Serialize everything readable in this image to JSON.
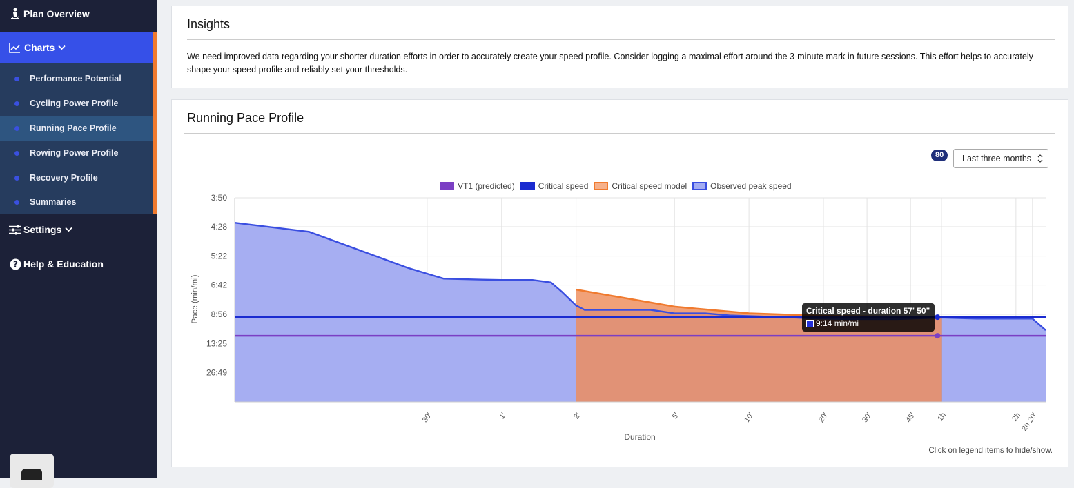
{
  "sidebar": {
    "plan_overview": "Plan Overview",
    "charts": "Charts",
    "charts_items": [
      "Performance Potential",
      "Cycling Power Profile",
      "Running Pace Profile",
      "Rowing Power Profile",
      "Recovery Profile",
      "Summaries"
    ],
    "active_item": "Running Pace Profile",
    "settings": "Settings",
    "help": "Help & Education"
  },
  "insights": {
    "title": "Insights",
    "text": "We need improved data regarding your shorter duration efforts in order to accurately create your speed profile. Consider logging a maximal effort around the 3-minute mark in future sessions. This effort helps to accurately shape your speed profile and reliably set your thresholds."
  },
  "profile": {
    "title": "Running Pace Profile",
    "count_badge": "80",
    "range_selected": "Last three months",
    "hint": "Click on legend items to hide/show."
  },
  "tooltip": {
    "title": "Critical speed - duration 57' 50\"",
    "value": "9:14 min/mi"
  },
  "colors": {
    "sidebar_bg": "#1c2138",
    "accent": "#3650e8",
    "orange": "#f07a2e"
  },
  "chart_data": {
    "type": "area",
    "xlabel": "Duration",
    "ylabel": "Pace (min/mi)",
    "x_scale": "log",
    "x_ticks": [
      "30'",
      "1'",
      "2'",
      "5'",
      "10'",
      "20'",
      "30'",
      "45'",
      "1h",
      "2h",
      "2h 20'"
    ],
    "x_tick_seconds": [
      30,
      60,
      120,
      300,
      600,
      1200,
      1800,
      2700,
      3600,
      7200,
      8400
    ],
    "y_ticks": [
      "3:50",
      "4:28",
      "5:22",
      "6:42",
      "8:56",
      "13:25",
      "26:49"
    ],
    "y_scale": "reciprocal (speed)",
    "legend": [
      {
        "name": "VT1 (predicted)",
        "color": "#7b3fc4"
      },
      {
        "name": "Critical speed",
        "color": "#1a2bd0"
      },
      {
        "name": "Critical speed model",
        "color": "#f07a2e"
      },
      {
        "name": "Observed peak speed",
        "color": "#3a4ee0"
      }
    ],
    "series": [
      {
        "name": "Observed peak speed",
        "x_seconds": [
          5,
          10,
          25,
          35,
          50,
          60,
          80,
          95,
          105,
          120,
          130,
          240,
          300,
          400,
          500,
          800,
          1100,
          1500,
          2400,
          3600,
          5000,
          8400,
          9500
        ],
        "pace": [
          "4:22",
          "4:36",
          "5:50",
          "6:21",
          "6:24",
          "6:25",
          "6:25",
          "6:33",
          "7:06",
          "8:07",
          "8:30",
          "8:30",
          "8:50",
          "8:50",
          "9:03",
          "9:13",
          "9:23",
          "9:27",
          "9:27",
          "9:17",
          "9:24",
          "9:24",
          "10:55"
        ]
      },
      {
        "name": "Critical speed model",
        "x_seconds": [
          120,
          300,
          600,
          1200,
          3600
        ],
        "pace": [
          "6:58",
          "8:13",
          "8:50",
          "9:05",
          "9:14"
        ]
      },
      {
        "name": "Critical speed",
        "pace_constant": "9:14"
      },
      {
        "name": "VT1 (predicted)",
        "pace_constant": "11:50"
      }
    ]
  }
}
